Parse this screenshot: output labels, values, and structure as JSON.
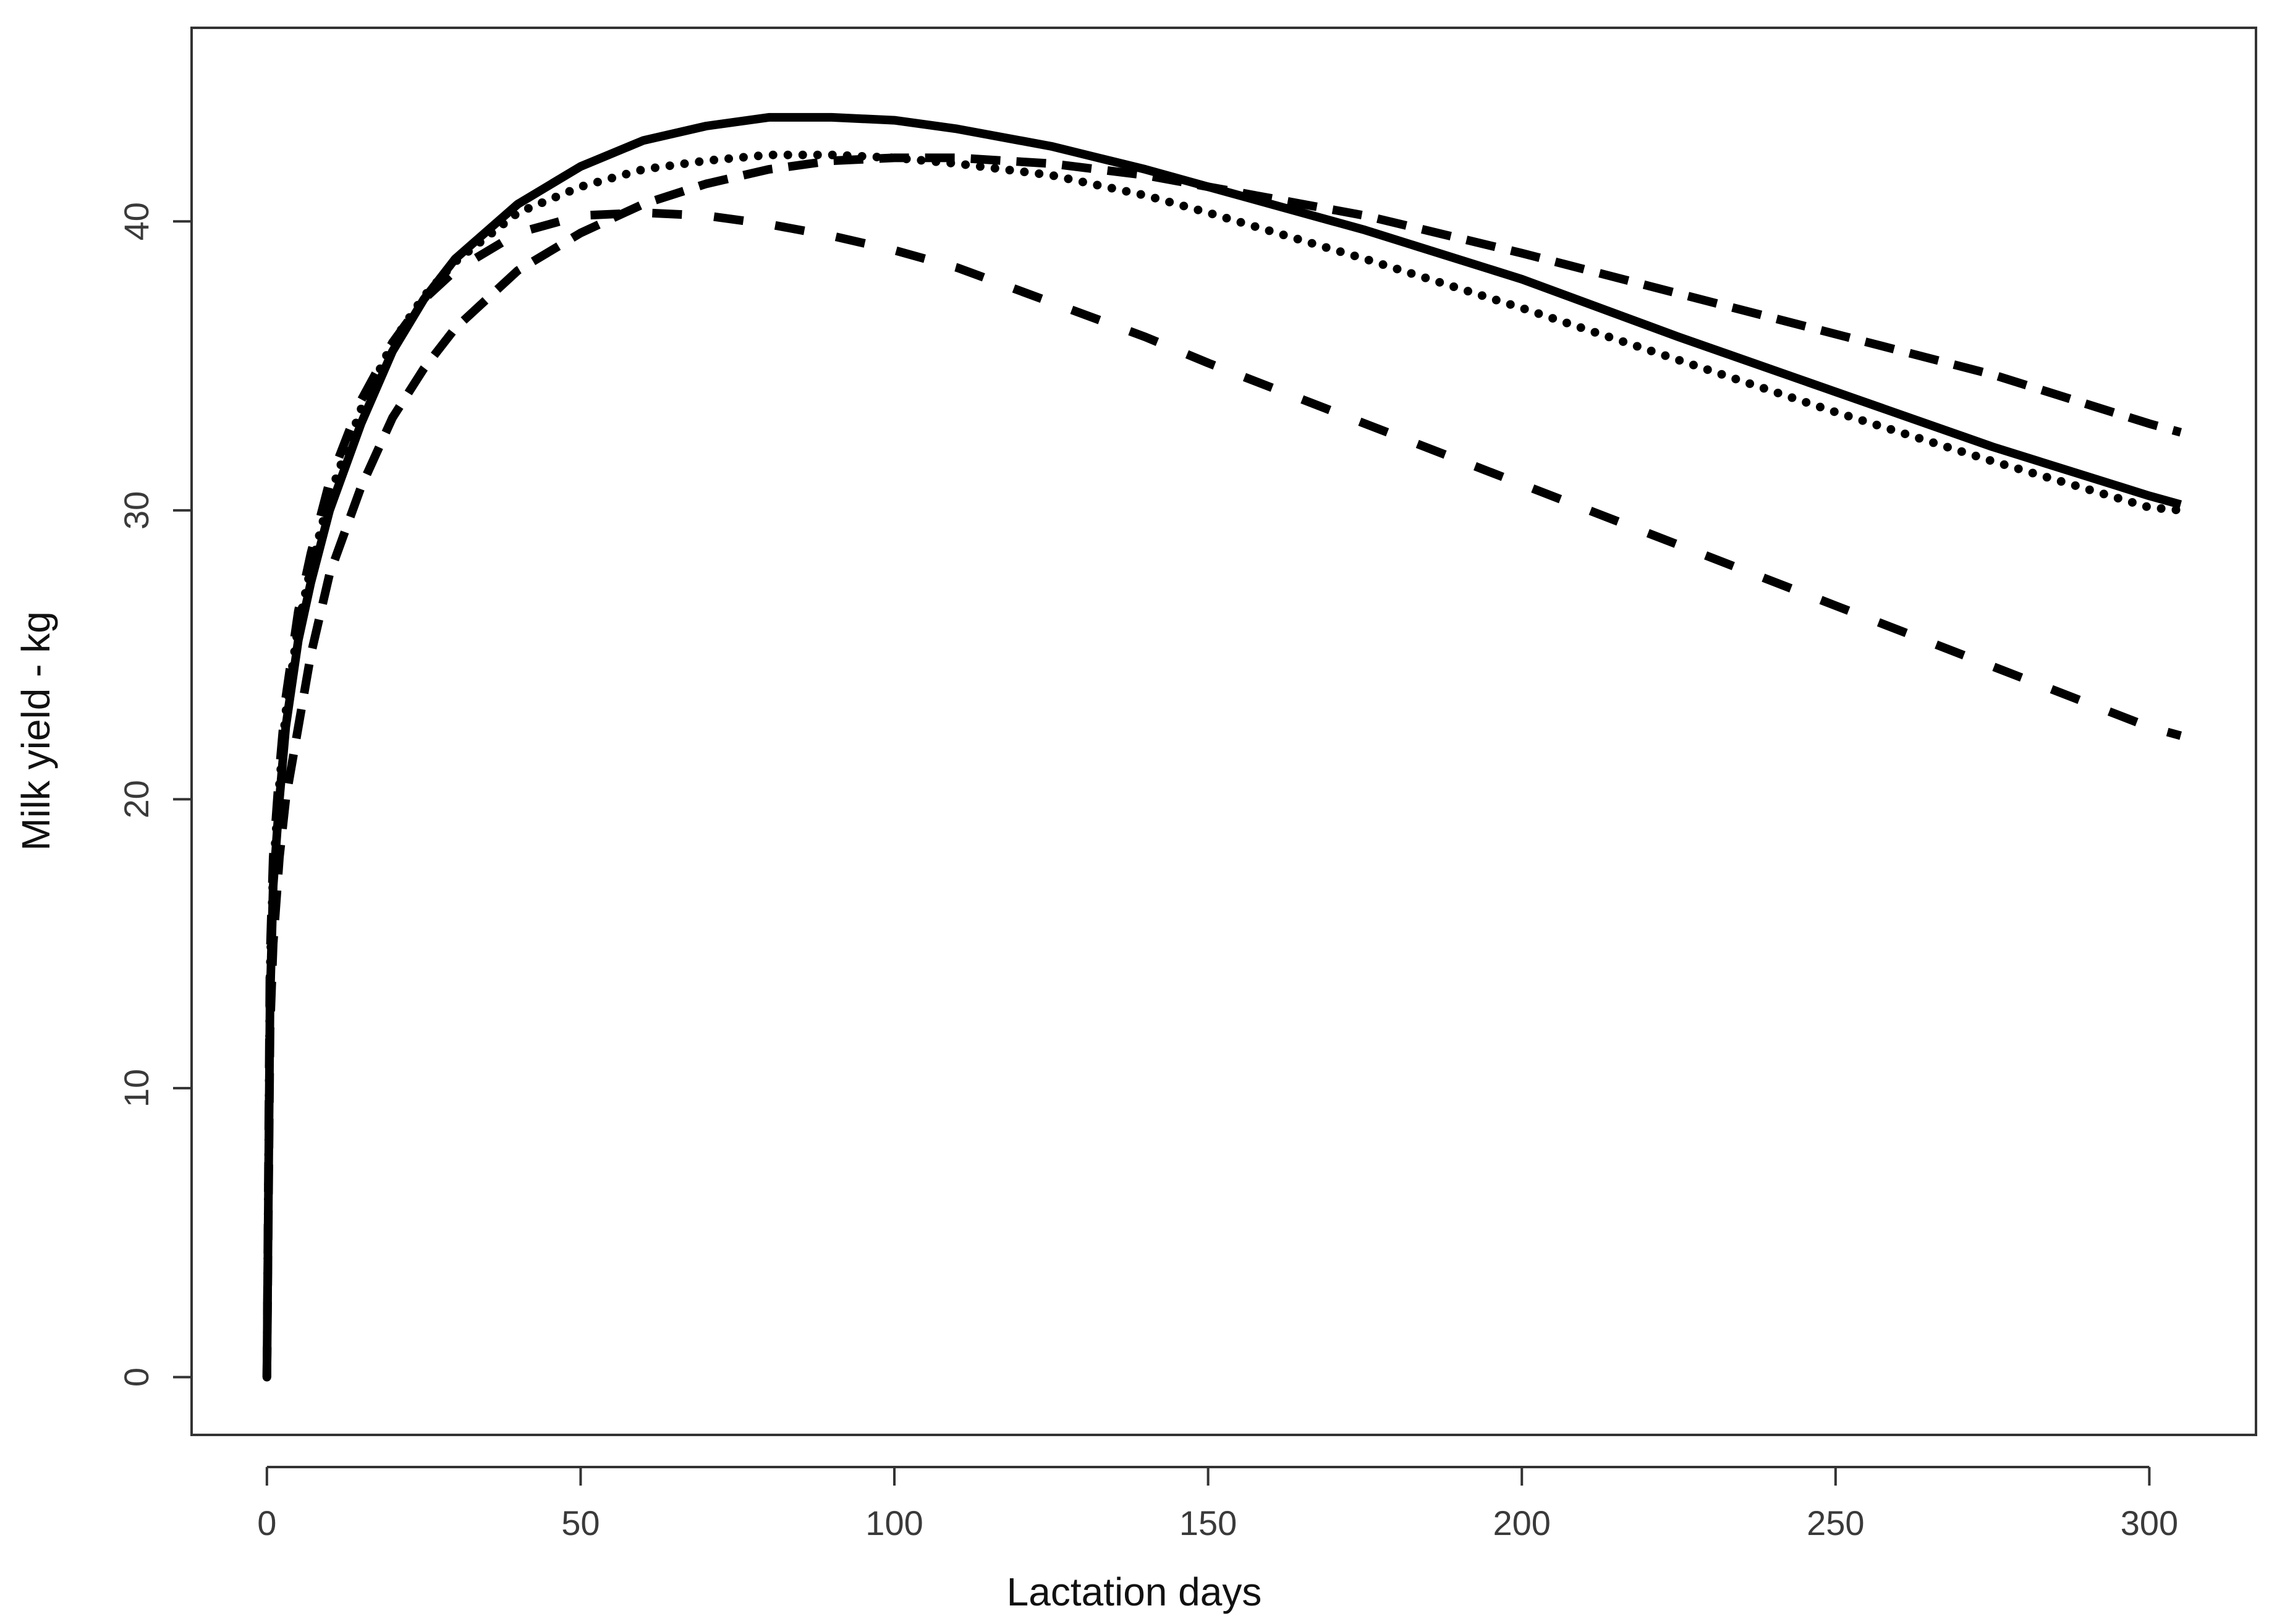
{
  "chart_data": {
    "type": "line",
    "title": "",
    "xlabel": "Lactation days",
    "ylabel": "Milk yield - kg",
    "xlim": [
      -12,
      317
    ],
    "ylim": [
      -2,
      46.7
    ],
    "x_ticks": [
      0,
      50,
      100,
      150,
      200,
      250,
      300
    ],
    "y_ticks": [
      0,
      10,
      20,
      30,
      40
    ],
    "grid": false,
    "legend": "none",
    "line_color": "#000000",
    "series": [
      {
        "style": "solid",
        "points": [
          [
            0,
            0
          ],
          [
            0.5,
            13
          ],
          [
            1,
            17
          ],
          [
            2,
            20
          ],
          [
            3,
            22.5
          ],
          [
            5,
            25.5
          ],
          [
            7,
            27.5
          ],
          [
            10,
            30
          ],
          [
            15,
            33
          ],
          [
            20,
            35.5
          ],
          [
            25,
            37.3
          ],
          [
            30,
            38.7
          ],
          [
            40,
            40.6
          ],
          [
            50,
            41.9
          ],
          [
            60,
            42.8
          ],
          [
            70,
            43.3
          ],
          [
            80,
            43.6
          ],
          [
            90,
            43.6
          ],
          [
            100,
            43.5
          ],
          [
            110,
            43.2
          ],
          [
            125,
            42.6
          ],
          [
            140,
            41.8
          ],
          [
            150,
            41.2
          ],
          [
            175,
            39.7
          ],
          [
            200,
            38
          ],
          [
            225,
            36
          ],
          [
            250,
            34.1
          ],
          [
            275,
            32.2
          ],
          [
            300,
            30.5
          ],
          [
            305,
            30.2
          ]
        ]
      },
      {
        "style": "dotted",
        "points": [
          [
            0,
            0
          ],
          [
            0.5,
            14
          ],
          [
            1,
            17.5
          ],
          [
            2,
            20.5
          ],
          [
            3,
            23
          ],
          [
            5,
            26
          ],
          [
            7,
            28
          ],
          [
            10,
            30.5
          ],
          [
            15,
            33.5
          ],
          [
            20,
            35.8
          ],
          [
            25,
            37.4
          ],
          [
            30,
            38.6
          ],
          [
            40,
            40.3
          ],
          [
            50,
            41.2
          ],
          [
            60,
            41.8
          ],
          [
            70,
            42.1
          ],
          [
            80,
            42.3
          ],
          [
            90,
            42.3
          ],
          [
            100,
            42.2
          ],
          [
            110,
            42
          ],
          [
            125,
            41.6
          ],
          [
            140,
            40.9
          ],
          [
            150,
            40.3
          ],
          [
            175,
            38.7
          ],
          [
            200,
            37
          ],
          [
            225,
            35.2
          ],
          [
            250,
            33.4
          ],
          [
            275,
            31.7
          ],
          [
            300,
            30.1
          ],
          [
            305,
            30
          ]
        ]
      },
      {
        "style": "dashed",
        "points": [
          [
            0,
            0
          ],
          [
            0.5,
            12
          ],
          [
            1,
            15
          ],
          [
            2,
            18
          ],
          [
            3,
            20
          ],
          [
            5,
            22.5
          ],
          [
            7,
            25
          ],
          [
            10,
            27.8
          ],
          [
            15,
            30.8
          ],
          [
            20,
            33.2
          ],
          [
            25,
            34.9
          ],
          [
            30,
            36.3
          ],
          [
            40,
            38.3
          ],
          [
            50,
            39.6
          ],
          [
            60,
            40.6
          ],
          [
            70,
            41.3
          ],
          [
            80,
            41.8
          ],
          [
            90,
            42.1
          ],
          [
            100,
            42.2
          ],
          [
            110,
            42.2
          ],
          [
            125,
            42
          ],
          [
            140,
            41.6
          ],
          [
            150,
            41.2
          ],
          [
            175,
            40.2
          ],
          [
            200,
            38.9
          ],
          [
            225,
            37.5
          ],
          [
            250,
            36.1
          ],
          [
            275,
            34.7
          ],
          [
            300,
            33
          ],
          [
            305,
            32.7
          ]
        ]
      },
      {
        "style": "dashdot",
        "points": [
          [
            0,
            0
          ],
          [
            0.5,
            14.5
          ],
          [
            1,
            18
          ],
          [
            2,
            21
          ],
          [
            3,
            23.5
          ],
          [
            5,
            26.5
          ],
          [
            7,
            28.5
          ],
          [
            10,
            31
          ],
          [
            15,
            33.8
          ],
          [
            20,
            35.8
          ],
          [
            25,
            37.3
          ],
          [
            30,
            38.3
          ],
          [
            40,
            39.6
          ],
          [
            50,
            40.2
          ],
          [
            60,
            40.3
          ],
          [
            70,
            40.2
          ],
          [
            80,
            39.9
          ],
          [
            90,
            39.5
          ],
          [
            100,
            39
          ],
          [
            110,
            38.4
          ],
          [
            125,
            37.2
          ],
          [
            140,
            36
          ],
          [
            150,
            35.1
          ],
          [
            175,
            33
          ],
          [
            200,
            30.9
          ],
          [
            225,
            28.8
          ],
          [
            250,
            26.7
          ],
          [
            275,
            24.6
          ],
          [
            300,
            22.5
          ],
          [
            305,
            22.2
          ]
        ]
      }
    ]
  }
}
